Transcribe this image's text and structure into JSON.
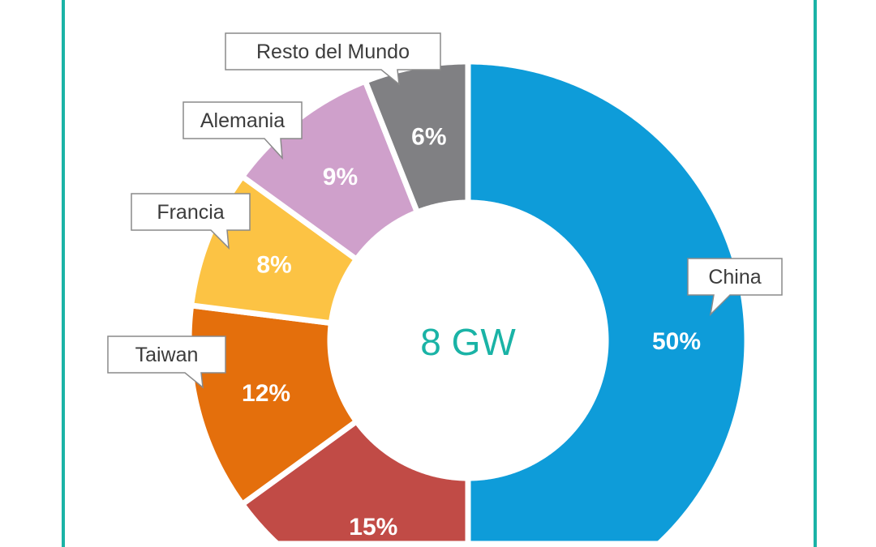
{
  "chart_data": {
    "type": "pie",
    "variant": "donut",
    "center_label": "8 GW",
    "start": "top",
    "direction": "clockwise",
    "slices": [
      {
        "name": "China",
        "value": 50,
        "label": "50%",
        "color": "#0e9cd9",
        "show_name": true
      },
      {
        "name": "",
        "value": 15,
        "label": "15%",
        "color": "#c14b46",
        "show_name": false
      },
      {
        "name": "Taiwan",
        "value": 12,
        "label": "12%",
        "color": "#e46f0c",
        "show_name": true
      },
      {
        "name": "Francia",
        "value": 8,
        "label": "8%",
        "color": "#fcc344",
        "show_name": true
      },
      {
        "name": "Alemania",
        "value": 9,
        "label": "9%",
        "color": "#cfa0cb",
        "show_name": true
      },
      {
        "name": "Resto del Mundo",
        "value": 6,
        "label": "6%",
        "color": "#808083",
        "show_name": true
      }
    ]
  },
  "colors": {
    "frame": "#1ab3a6",
    "center_text": "#1ab3a6",
    "callout_border": "#8a8a8a",
    "callout_text": "#3c3c3c"
  }
}
